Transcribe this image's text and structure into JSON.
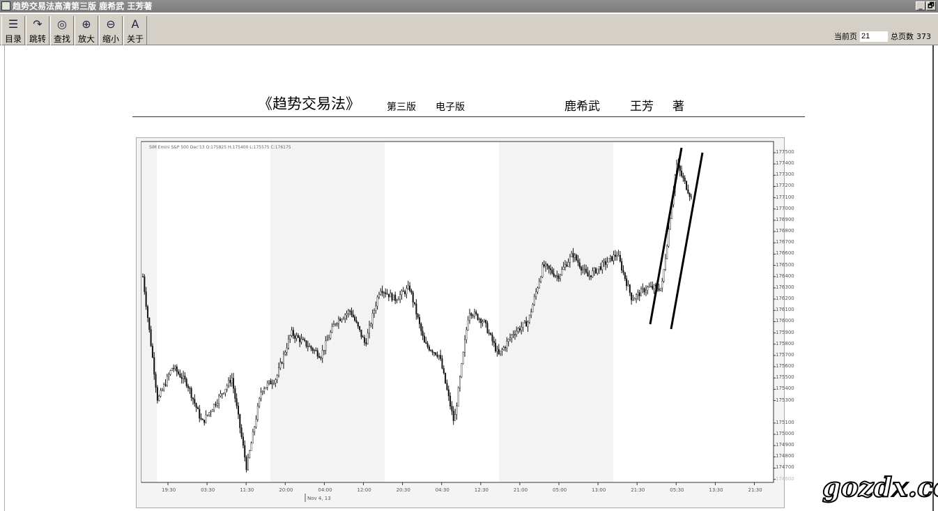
{
  "window": {
    "title": "趋势交易法高清第三版  鹿希武  王芳著",
    "minimize": "_",
    "restore": "🗗"
  },
  "toolbar": {
    "buttons": [
      {
        "label": "目录",
        "icon": "list-icon",
        "glyph": "☰"
      },
      {
        "label": "跳转",
        "icon": "jump-icon",
        "glyph": "↷"
      },
      {
        "label": "查找",
        "icon": "find-icon",
        "glyph": "◎"
      },
      {
        "label": "放大",
        "icon": "zoom-in-icon",
        "glyph": "⊕"
      },
      {
        "label": "缩小",
        "icon": "zoom-out-icon",
        "glyph": "⊖"
      },
      {
        "label": "关于",
        "icon": "about-icon",
        "glyph": "A"
      }
    ],
    "current_page_label": "当前页",
    "current_page": "21",
    "total_pages_label": "总页数",
    "total_pages": "373"
  },
  "page": {
    "title": "《趋势交易法》",
    "edition": "第三版",
    "format": "电子版",
    "author1": "鹿希武",
    "author2": "王芳",
    "author_suffix": "著"
  },
  "chart_data": {
    "type": "candlestick",
    "legend": "SIM Emini S&P 500 Dec'13 O:175825 H:175400 L:175575 C:176175",
    "y_ticks": [
      177500,
      177400,
      177300,
      177200,
      177100,
      177000,
      176900,
      176800,
      176700,
      176600,
      176500,
      176400,
      176300,
      176200,
      176100,
      176000,
      175900,
      175800,
      175700,
      175600,
      175500,
      175400,
      175300,
      175100,
      175000,
      174900,
      174800,
      174700,
      174600
    ],
    "x_ticks": [
      "19:30",
      "03:30",
      "11:30",
      "20:00",
      "04:00",
      "12:00",
      "20:30",
      "04:30",
      "12:30",
      "21:00",
      "05:00",
      "13:00",
      "21:30",
      "05:30",
      "13:30",
      "21:30"
    ],
    "date_marker": "Nov 4, 13",
    "approx_closes": [
      176400,
      175300,
      175600,
      175450,
      175100,
      175300,
      175500,
      174700,
      175400,
      175500,
      175900,
      175800,
      175700,
      176000,
      176100,
      175800,
      176300,
      176200,
      176300,
      175800,
      175700,
      175100,
      176100,
      176000,
      175700,
      175900,
      176000,
      176500,
      176400,
      176600,
      176400,
      176500,
      176600,
      176200,
      176300,
      176300,
      177400,
      177100
    ],
    "ylim": [
      174600,
      177600
    ]
  },
  "watermark": "gozdx.com"
}
